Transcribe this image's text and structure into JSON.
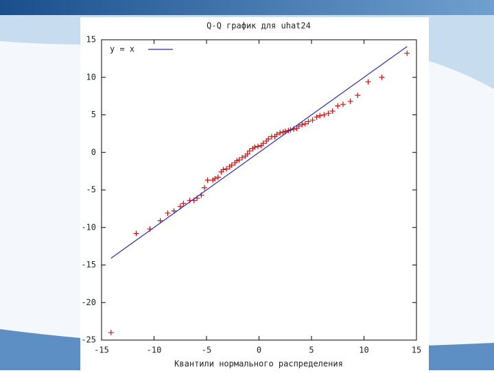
{
  "chart_data": {
    "type": "scatter",
    "title": "Q-Q график для uhat24",
    "x_label": "Квантили нормального распределения",
    "xlim": [
      -15,
      15
    ],
    "xticks": [
      -15,
      -10,
      -5,
      0,
      5,
      10,
      15
    ],
    "ylim": [
      -25,
      15
    ],
    "yticks": [
      -25,
      -20,
      -15,
      -10,
      -5,
      0,
      5,
      10,
      15
    ],
    "legend": "top-left",
    "series": [
      {
        "color": "#d01010",
        "x": [
          -14.1,
          -11.7,
          -10.4,
          -9.4,
          -8.7,
          -8.1,
          -7.5,
          -7.2,
          -6.6,
          -6.2,
          -5.9,
          -5.5,
          -5.2,
          -4.9,
          -4.4,
          -4.2,
          -3.9,
          -3.6,
          -3.4,
          -3.1,
          -2.8,
          -2.6,
          -2.3,
          -2.1,
          -1.9,
          -1.6,
          -1.3,
          -1.1,
          -0.9,
          -0.6,
          -0.4,
          -0.1,
          0.2,
          0.4,
          0.7,
          0.9,
          1.2,
          1.5,
          1.7,
          2.0,
          2.3,
          2.5,
          2.8,
          3.0,
          3.3,
          3.6,
          3.8,
          4.1,
          4.4,
          4.7,
          5.1,
          5.5,
          5.8,
          6.2,
          6.6,
          7.0,
          7.5,
          8.0,
          8.7,
          9.4,
          10.4,
          11.7,
          14.1
        ],
        "values": [
          -24.0,
          -10.8,
          -10.2,
          -9.1,
          -8.1,
          -7.8,
          -7.2,
          -6.8,
          -6.4,
          -6.4,
          -6.1,
          -5.7,
          -4.7,
          -3.7,
          -3.7,
          -3.5,
          -3.3,
          -2.6,
          -2.3,
          -2.2,
          -1.9,
          -1.7,
          -1.4,
          -1.1,
          -1.0,
          -0.7,
          -0.5,
          -0.2,
          0.2,
          0.5,
          0.7,
          0.8,
          0.9,
          1.2,
          1.5,
          1.8,
          2.1,
          2.1,
          2.4,
          2.6,
          2.7,
          2.8,
          2.9,
          3.0,
          3.1,
          3.2,
          3.5,
          3.7,
          3.8,
          4.1,
          4.3,
          4.7,
          4.9,
          5.0,
          5.2,
          5.5,
          6.2,
          6.4,
          6.8,
          7.6,
          9.4,
          10.0,
          13.2
        ]
      },
      {
        "name": "y = x",
        "type": "line",
        "color": "#2828d0",
        "x": [
          -14.1,
          14.1
        ],
        "values": [
          -14.1,
          14.1
        ]
      }
    ]
  }
}
